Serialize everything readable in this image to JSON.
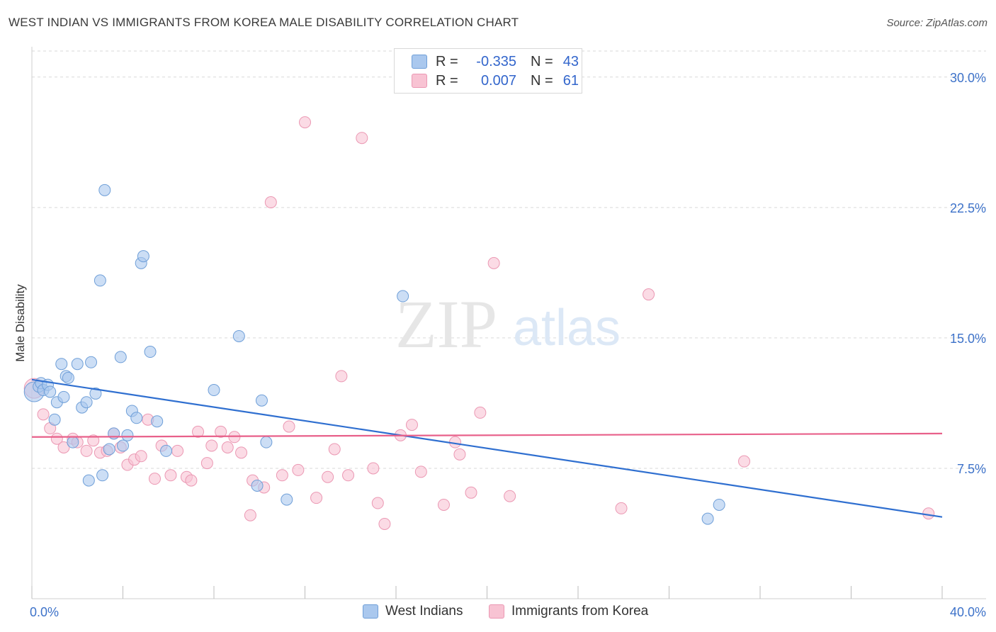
{
  "header": {
    "title": "WEST INDIAN VS IMMIGRANTS FROM KOREA MALE DISABILITY CORRELATION CHART",
    "source": "Source: ZipAtlas.com"
  },
  "watermark": {
    "zip": "ZIP",
    "atlas": "atlas"
  },
  "legend": {
    "rows": [
      {
        "r_label": "R =",
        "r_value": "-0.335",
        "n_label": "N =",
        "n_value": "43"
      },
      {
        "r_label": "R =",
        "r_value": "0.007",
        "n_label": "N =",
        "n_value": "61"
      }
    ]
  },
  "bottom_legend": {
    "series1": "West Indians",
    "series2": "Immigrants from Korea"
  },
  "colors": {
    "blue_fill": "#aac8ee",
    "blue_stroke": "#6f9fd8",
    "blue_line": "#2f6fd0",
    "pink_fill": "#f8c3d3",
    "pink_stroke": "#eb98b3",
    "pink_line": "#e8608a",
    "axis_text": "#3d72c9",
    "grid": "#d9d9d9"
  },
  "chart_data": {
    "type": "scatter",
    "title": "WEST INDIAN VS IMMIGRANTS FROM KOREA MALE DISABILITY CORRELATION CHART",
    "xlabel": "",
    "ylabel": "Male Disability",
    "xlim": [
      0,
      40
    ],
    "ylim": [
      0,
      31.5
    ],
    "x_tick_labels": [
      "0.0%",
      "40.0%"
    ],
    "y_ticks": [
      7.5,
      15.0,
      22.5,
      30.0
    ],
    "y_tick_labels": [
      "7.5%",
      "15.0%",
      "22.5%",
      "30.0%"
    ],
    "grid": true,
    "legend_position": "top-center",
    "series": [
      {
        "name": "West Indians",
        "r": -0.335,
        "n": 43,
        "trend": {
          "x": [
            0,
            40
          ],
          "y": [
            12.6,
            4.7
          ]
        },
        "points": [
          [
            0.1,
            11.9
          ],
          [
            0.3,
            12.2
          ],
          [
            0.4,
            12.4
          ],
          [
            0.5,
            12.0
          ],
          [
            0.7,
            12.3
          ],
          [
            0.8,
            11.9
          ],
          [
            1.0,
            10.3
          ],
          [
            1.1,
            11.3
          ],
          [
            1.3,
            13.5
          ],
          [
            1.4,
            11.6
          ],
          [
            1.5,
            12.8
          ],
          [
            1.6,
            12.7
          ],
          [
            1.8,
            9.0
          ],
          [
            2.0,
            13.5
          ],
          [
            2.2,
            11.0
          ],
          [
            2.4,
            11.3
          ],
          [
            2.5,
            6.8
          ],
          [
            2.6,
            13.6
          ],
          [
            2.8,
            11.8
          ],
          [
            3.0,
            18.3
          ],
          [
            3.1,
            7.1
          ],
          [
            3.2,
            23.5
          ],
          [
            3.4,
            8.6
          ],
          [
            3.6,
            9.5
          ],
          [
            3.9,
            13.9
          ],
          [
            4.0,
            8.8
          ],
          [
            4.2,
            9.4
          ],
          [
            4.4,
            10.8
          ],
          [
            4.6,
            10.4
          ],
          [
            4.8,
            19.3
          ],
          [
            4.9,
            19.7
          ],
          [
            5.2,
            14.2
          ],
          [
            5.5,
            10.2
          ],
          [
            5.9,
            8.5
          ],
          [
            8.0,
            12.0
          ],
          [
            9.1,
            15.1
          ],
          [
            9.9,
            6.5
          ],
          [
            10.1,
            11.4
          ],
          [
            10.3,
            9.0
          ],
          [
            11.2,
            5.7
          ],
          [
            16.3,
            17.4
          ],
          [
            29.7,
            4.6
          ],
          [
            30.2,
            5.4
          ]
        ]
      },
      {
        "name": "Immigrants from Korea",
        "r": 0.007,
        "n": 61,
        "trend": {
          "x": [
            0,
            40
          ],
          "y": [
            9.3,
            9.5
          ]
        },
        "points": [
          [
            0.1,
            12.1
          ],
          [
            0.5,
            10.6
          ],
          [
            0.8,
            9.8
          ],
          [
            1.1,
            9.2
          ],
          [
            1.4,
            8.7
          ],
          [
            1.8,
            9.2
          ],
          [
            2.0,
            9.0
          ],
          [
            2.4,
            8.5
          ],
          [
            2.7,
            9.1
          ],
          [
            3.0,
            8.4
          ],
          [
            3.3,
            8.5
          ],
          [
            3.6,
            9.5
          ],
          [
            3.9,
            8.7
          ],
          [
            4.2,
            7.7
          ],
          [
            4.5,
            8.0
          ],
          [
            4.8,
            8.2
          ],
          [
            5.1,
            10.3
          ],
          [
            5.4,
            6.9
          ],
          [
            5.7,
            8.8
          ],
          [
            6.1,
            7.1
          ],
          [
            6.4,
            8.5
          ],
          [
            6.8,
            7.0
          ],
          [
            7.0,
            6.8
          ],
          [
            7.3,
            9.6
          ],
          [
            7.7,
            7.8
          ],
          [
            7.9,
            8.8
          ],
          [
            8.3,
            9.6
          ],
          [
            8.6,
            8.7
          ],
          [
            8.9,
            9.3
          ],
          [
            9.2,
            8.4
          ],
          [
            9.6,
            4.8
          ],
          [
            9.7,
            6.8
          ],
          [
            10.2,
            6.4
          ],
          [
            10.5,
            22.8
          ],
          [
            11.0,
            7.1
          ],
          [
            11.3,
            9.9
          ],
          [
            11.7,
            7.4
          ],
          [
            12.0,
            27.4
          ],
          [
            12.5,
            5.8
          ],
          [
            13.0,
            7.0
          ],
          [
            13.3,
            8.6
          ],
          [
            13.6,
            12.8
          ],
          [
            13.9,
            7.1
          ],
          [
            14.5,
            26.5
          ],
          [
            15.0,
            7.5
          ],
          [
            15.2,
            5.5
          ],
          [
            15.5,
            4.3
          ],
          [
            16.2,
            9.4
          ],
          [
            16.7,
            10.0
          ],
          [
            17.1,
            7.3
          ],
          [
            18.1,
            5.4
          ],
          [
            18.6,
            9.0
          ],
          [
            18.8,
            8.3
          ],
          [
            19.3,
            6.1
          ],
          [
            19.7,
            10.7
          ],
          [
            20.3,
            19.3
          ],
          [
            21.0,
            5.9
          ],
          [
            25.9,
            5.2
          ],
          [
            27.1,
            17.5
          ],
          [
            31.3,
            7.9
          ],
          [
            39.4,
            4.9
          ]
        ]
      }
    ]
  }
}
